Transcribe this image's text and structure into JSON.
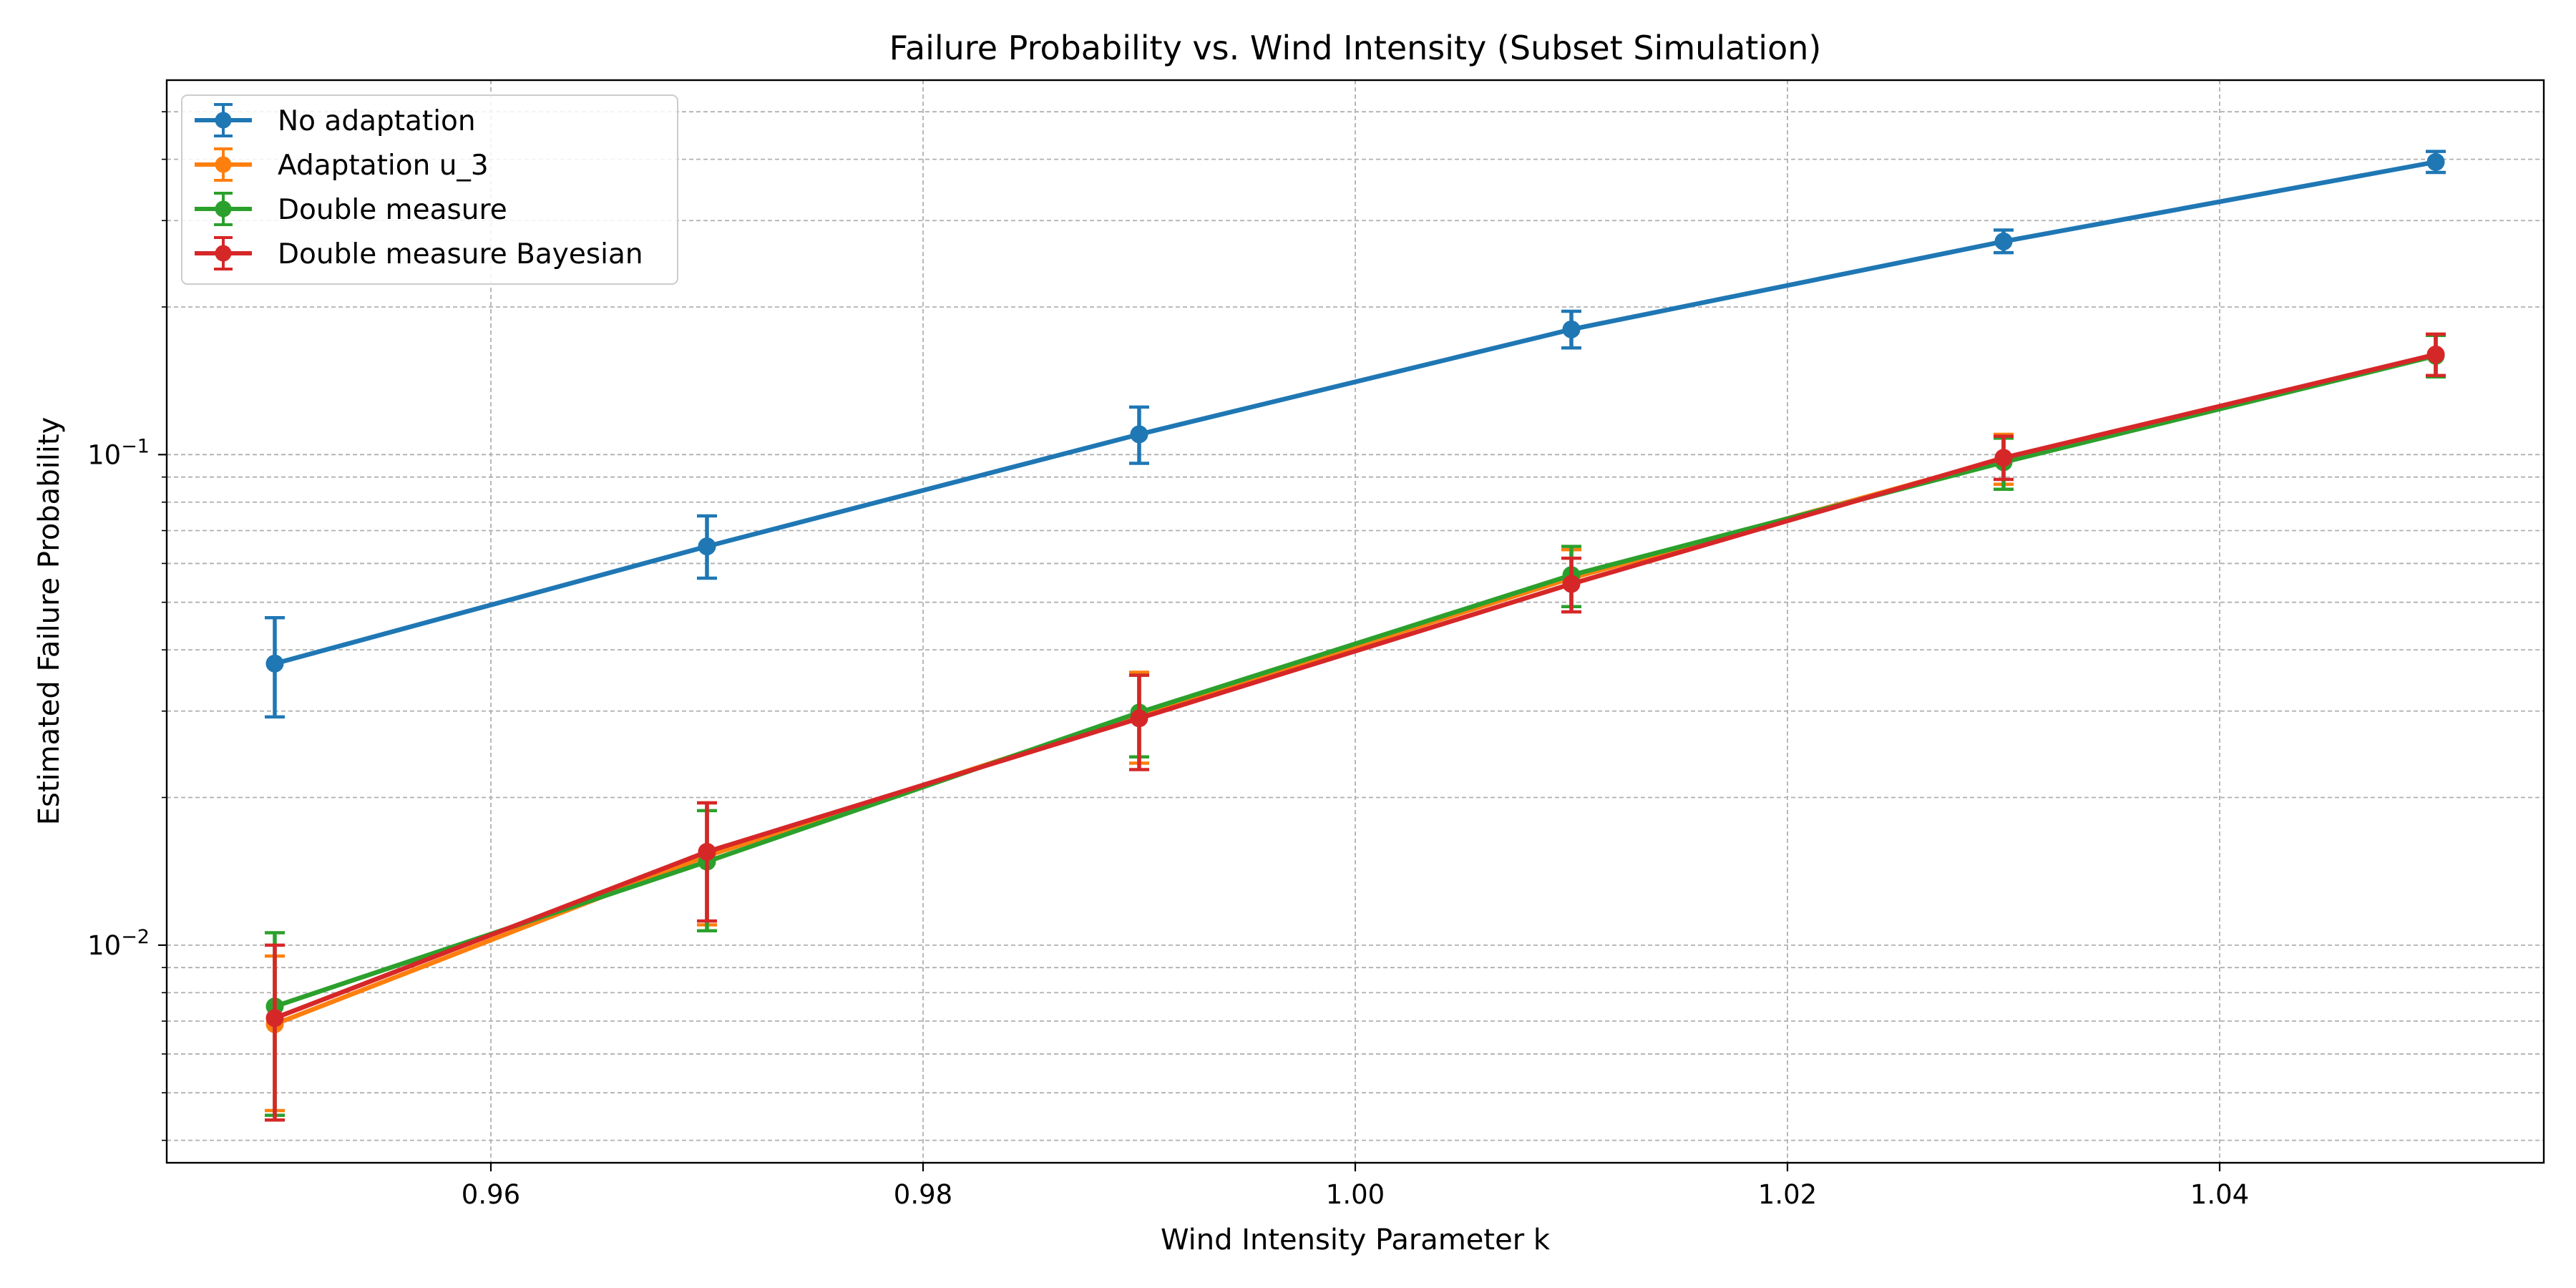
{
  "chart_data": {
    "type": "line",
    "title": "Failure Probability vs. Wind Intensity (Subset Simulation)",
    "xlabel": "Wind Intensity Parameter k",
    "ylabel": "Estimated Failure Probability",
    "yscale": "log",
    "xlim": [
      0.945,
      1.055
    ],
    "ylim": [
      0.0036,
      0.58
    ],
    "xticks": [
      0.96,
      0.98,
      1.0,
      1.02,
      1.04
    ],
    "xtick_labels": [
      "0.96",
      "0.98",
      "1.00",
      "1.02",
      "1.04"
    ],
    "yticks_major": [
      {
        "value": 0.01,
        "base": "10",
        "exp": "−2"
      },
      {
        "value": 0.1,
        "base": "10",
        "exp": "−1"
      }
    ],
    "grid": true,
    "legend_position": "upper left",
    "x": [
      0.95,
      0.97,
      0.99,
      1.01,
      1.03,
      1.05
    ],
    "series": [
      {
        "name": "No adaptation",
        "color": "#1f77b4",
        "values": [
          0.0375,
          0.065,
          0.11,
          0.18,
          0.272,
          0.395
        ],
        "err_low": [
          0.0292,
          0.056,
          0.096,
          0.165,
          0.258,
          0.376
        ],
        "err_high": [
          0.0465,
          0.075,
          0.125,
          0.196,
          0.287,
          0.415
        ]
      },
      {
        "name": "Adaptation u_3",
        "color": "#ff7f0e",
        "values": [
          0.0069,
          0.0152,
          0.0295,
          0.056,
          0.098,
          0.16
        ],
        "err_low": [
          0.0046,
          0.011,
          0.0235,
          0.049,
          0.087,
          0.145
        ],
        "err_high": [
          0.0095,
          0.0195,
          0.036,
          0.064,
          0.11,
          0.176
        ]
      },
      {
        "name": "Double measure",
        "color": "#2ca02c",
        "values": [
          0.0075,
          0.0148,
          0.0298,
          0.0568,
          0.0965,
          0.159
        ],
        "err_low": [
          0.0045,
          0.0107,
          0.0242,
          0.049,
          0.085,
          0.144
        ],
        "err_high": [
          0.0106,
          0.0188,
          0.0355,
          0.065,
          0.108,
          0.175
        ]
      },
      {
        "name": "Double measure Bayesian",
        "color": "#d62728",
        "values": [
          0.0071,
          0.0155,
          0.029,
          0.0545,
          0.0985,
          0.16
        ],
        "err_low": [
          0.0044,
          0.0112,
          0.0228,
          0.0478,
          0.089,
          0.145
        ],
        "err_high": [
          0.01,
          0.0195,
          0.0355,
          0.0615,
          0.109,
          0.176
        ]
      }
    ]
  }
}
